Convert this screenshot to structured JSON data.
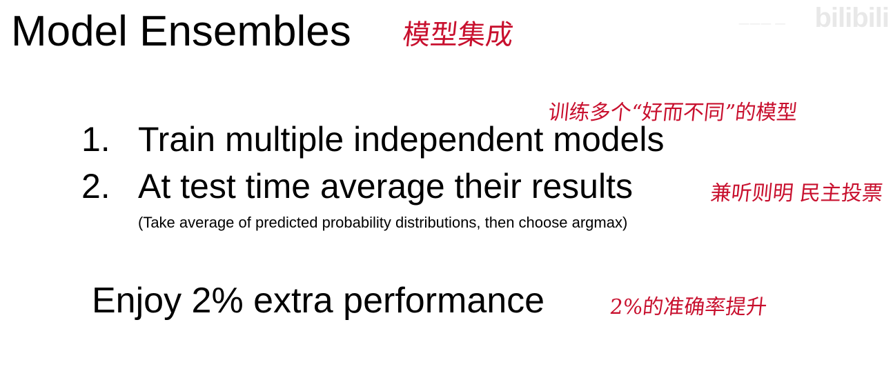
{
  "slide": {
    "title": "Model Ensembles",
    "title_annotation": "模型集成",
    "items": [
      {
        "number": "1.",
        "text": "Train multiple independent models",
        "annotation": "训练多个“好而不同”的模型"
      },
      {
        "number": "2.",
        "text": "At test time average their results",
        "annotation": "兼听则明 民主投票",
        "subnote": "(Take average of predicted probability distributions, then choose argmax)"
      }
    ],
    "footer": {
      "text": "Enjoy 2% extra performance",
      "annotation": "2%的准确率提升"
    }
  },
  "watermark": {
    "logo": "bilibili",
    "channel": "一一一  一"
  },
  "colors": {
    "text": "#000000",
    "annotation": "#c8102e",
    "background": "#ffffff",
    "watermark": "#e8e8e8"
  }
}
